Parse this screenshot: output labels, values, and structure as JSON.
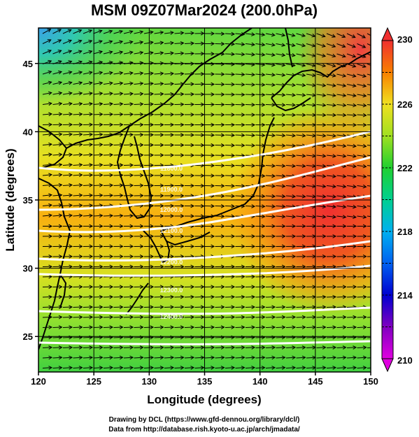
{
  "title": "MSM 09Z07Mar2024 (200.0hPa)",
  "xlabel": "Longitude (degrees)",
  "ylabel": "Latitude  (degrees)",
  "credits": [
    "Drawing by DCL (https://www.gfd-dennou.org/library/dcl/)",
    "Data from http://database.rish.kyoto-u.ac.jp/arch/jmadata/"
  ],
  "map": {
    "lon_range": [
      120,
      150
    ],
    "lat_range": [
      22.4,
      47.6
    ],
    "x_ticks": [
      120,
      125,
      130,
      135,
      140,
      145,
      150
    ],
    "x_tick_labels": [
      "120",
      "125",
      "130",
      "135",
      "140",
      "145",
      "150"
    ],
    "y_ticks": [
      25,
      30,
      35,
      40,
      45
    ],
    "y_tick_labels": [
      "25",
      "30",
      "35",
      "40",
      "45"
    ],
    "grid": true,
    "field": "temperature",
    "vectors": "wind",
    "contours": "geopotential height",
    "contour_labels": [
      "11800.0",
      "11900.0",
      "12000.0",
      "12100.0",
      "12200.0",
      "12300.0",
      "12400.0"
    ]
  },
  "colorbar": {
    "min": 210,
    "max": 230,
    "tick_values": [
      210,
      214,
      218,
      222,
      226,
      230
    ],
    "tick_labels": [
      "210",
      "214",
      "218",
      "222",
      "226",
      "230"
    ],
    "colors": [
      "#e000e0",
      "#8000c0",
      "#0000d0",
      "#0050f0",
      "#00a0f0",
      "#00d0c0",
      "#00d060",
      "#30d030",
      "#90e020",
      "#e0e020",
      "#f8b000",
      "#f86000",
      "#f03030"
    ]
  },
  "chart_data": {
    "type": "heatmap",
    "title": "MSM 09Z07Mar2024 (200.0hPa)",
    "xlabel": "Longitude (degrees)",
    "ylabel": "Latitude  (degrees)",
    "xlim": [
      120,
      150
    ],
    "ylim": [
      22.4,
      47.6
    ],
    "zlim": [
      210,
      230
    ]
  }
}
